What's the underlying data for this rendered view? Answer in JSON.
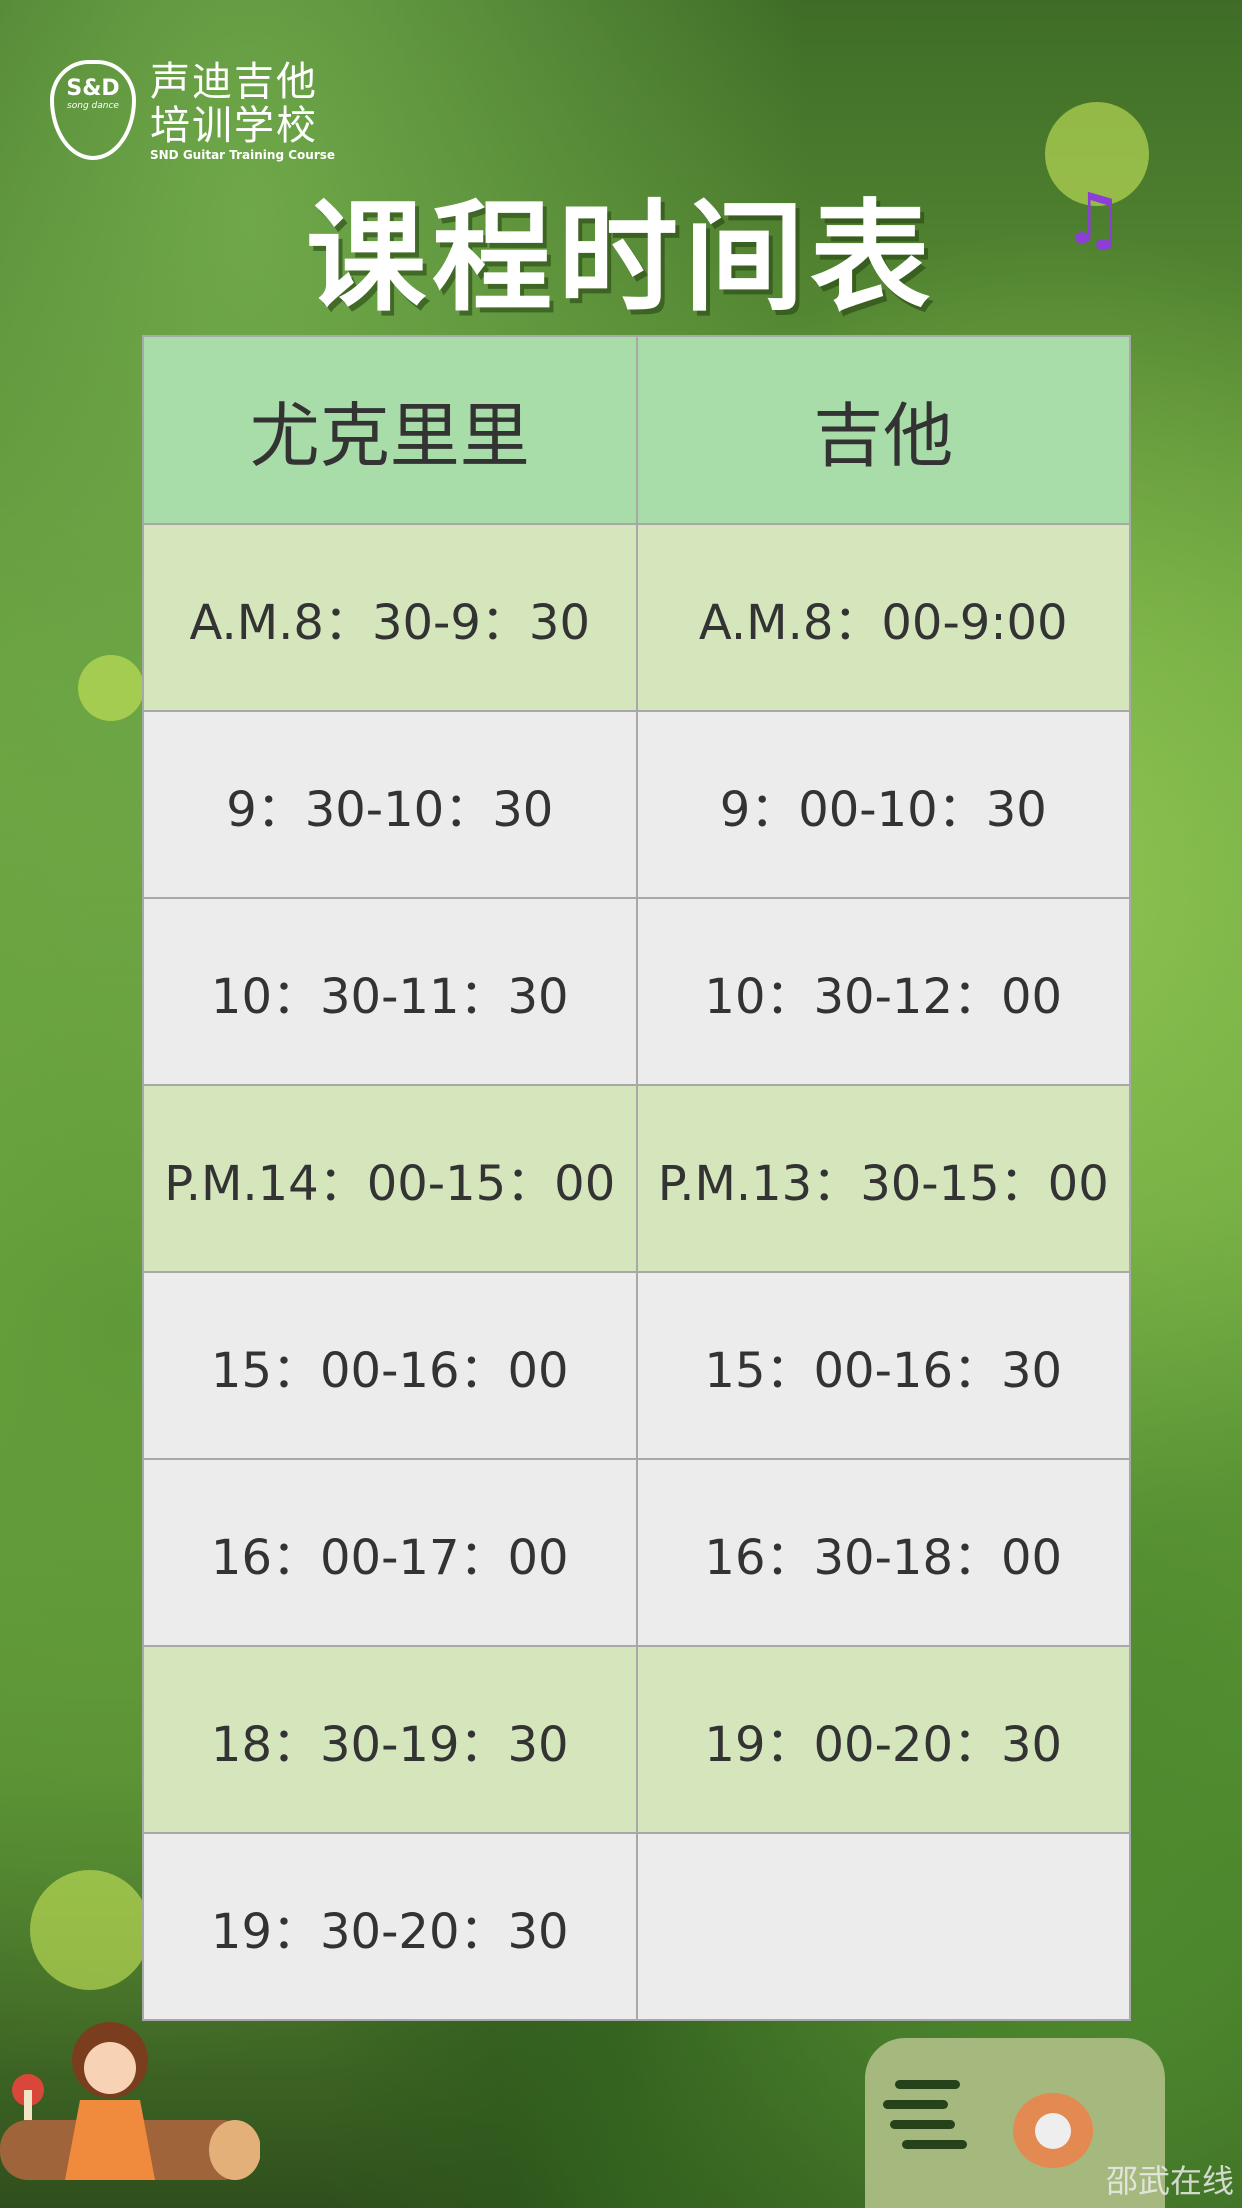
{
  "logo": {
    "mark": "S&D",
    "mark_sub": "song dance",
    "name_line1": "声迪吉他",
    "name_line2": "培训学校",
    "name_en": "SND Guitar Training Course"
  },
  "title": "课程时间表",
  "table": {
    "headers": [
      "尤克里里",
      "吉他"
    ],
    "rows": [
      [
        "A.M.8：30-9：30",
        "A.M.8：00-9:00"
      ],
      [
        "9：30-10：30",
        "9：00-10：30"
      ],
      [
        "10：30-11：30",
        "10：30-12：00"
      ],
      [
        "P.M.14：00-15：00",
        "P.M.13：30-15：00"
      ],
      [
        "15：00-16：00",
        "15：00-16：30"
      ],
      [
        "16：00-17：00",
        "16：30-18：00"
      ],
      [
        "18：30-19：30",
        "19：00-20：30"
      ],
      [
        "19：30-20：30",
        ""
      ]
    ]
  },
  "watermark": "邵武在线",
  "colors": {
    "header": "#a8dca8",
    "green_row": "#d5e6bc",
    "gray_row": "#ececec",
    "note": "#8b3fd6"
  }
}
